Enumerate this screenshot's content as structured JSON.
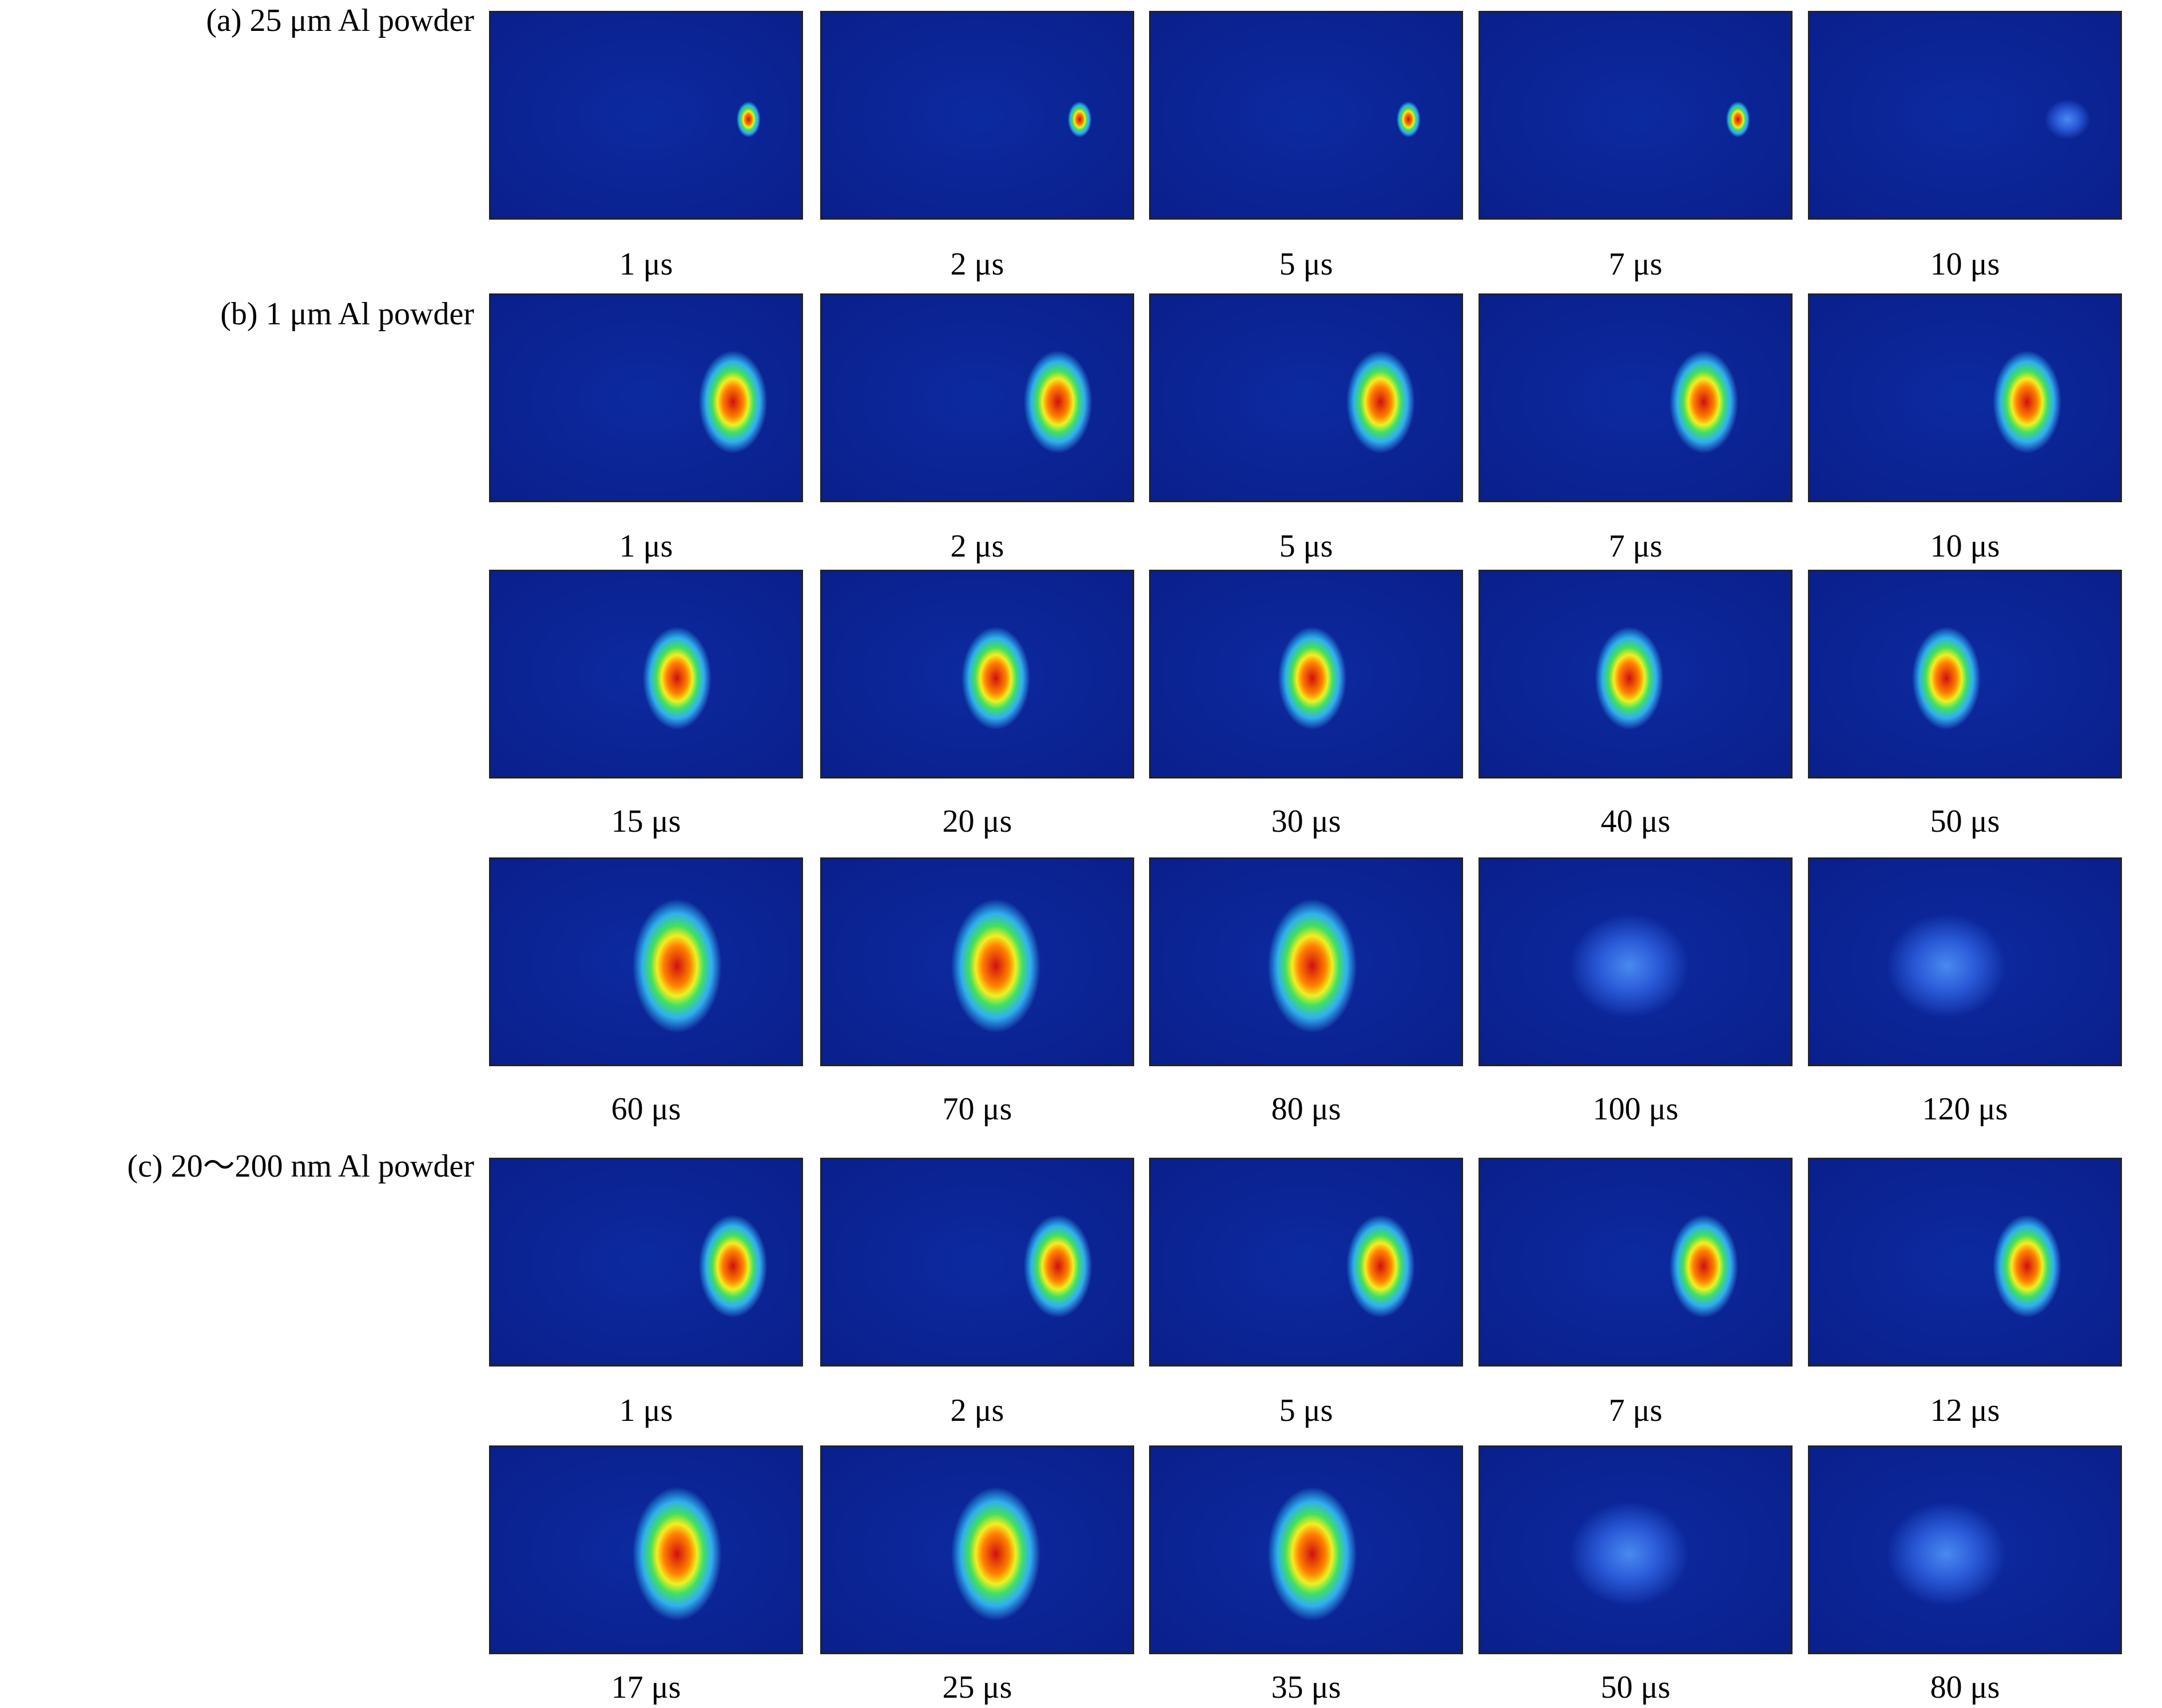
{
  "sections": [
    {
      "label": "(a) 25 μm Al powder",
      "rows": [
        [
          "1 μs",
          "2 μs",
          "5 μs",
          "7 μs",
          "10 μs"
        ]
      ]
    },
    {
      "label": "(b) 1 μm Al powder",
      "rows": [
        [
          "1 μs",
          "2 μs",
          "5 μs",
          "7 μs",
          "10 μs"
        ],
        [
          "15 μs",
          "20 μs",
          "30 μs",
          "40 μs",
          "50 μs"
        ],
        [
          "60 μs",
          "70 μs",
          "80 μs",
          "100 μs",
          "120 μs"
        ]
      ]
    },
    {
      "label": "(c) 20～200 nm Al powder",
      "rows": [
        [
          "1 μs",
          "2 μs",
          "5 μs",
          "7 μs",
          "12 μs"
        ],
        [
          "17 μs",
          "25 μs",
          "35 μs",
          "50 μs",
          "80 μs"
        ]
      ]
    }
  ]
}
